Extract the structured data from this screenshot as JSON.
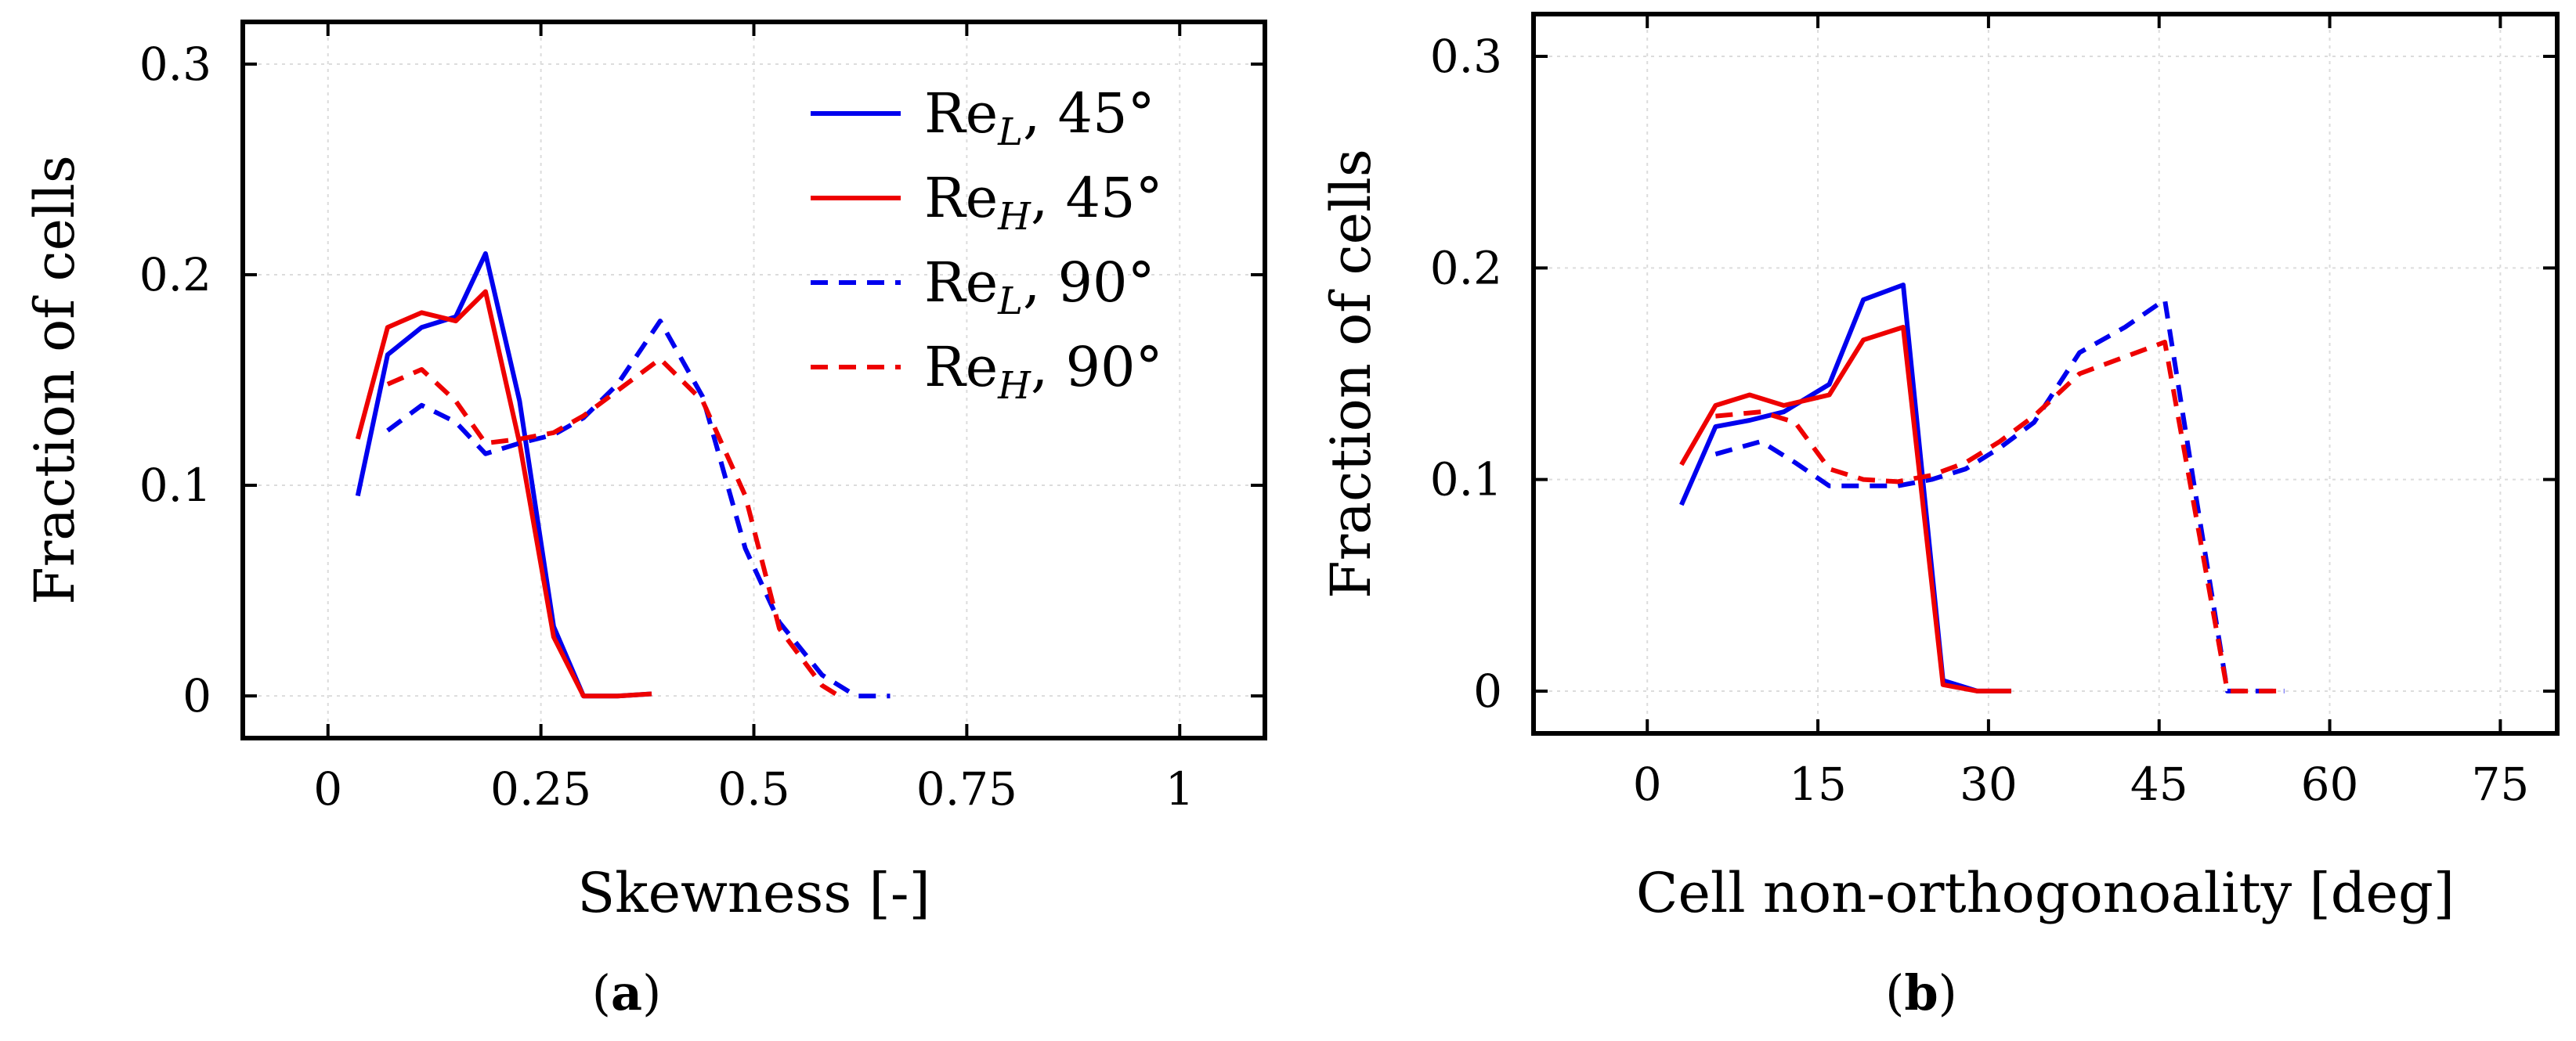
{
  "chart_data": [
    {
      "type": "line",
      "panel_label": "a",
      "xlabel": "Skewness [-]",
      "ylabel": "Fraction of cells",
      "xlim": [
        -0.1,
        1.1
      ],
      "ylim": [
        -0.02,
        0.32
      ],
      "xticks": [
        0,
        0.25,
        0.5,
        0.75,
        1
      ],
      "xtick_labels": [
        "0",
        "0.25",
        "0.5",
        "0.75",
        "1"
      ],
      "yticks": [
        0,
        0.1,
        0.2,
        0.3
      ],
      "ytick_labels": [
        "0",
        "0.1",
        "0.2",
        "0.3"
      ],
      "grid": true,
      "legend_position": "top-right",
      "series": [
        {
          "name": "Re_L, 45°",
          "legend_base": "Re",
          "legend_sub": "L",
          "legend_rest": ", 45°",
          "color": "#0000ee",
          "style": "solid",
          "x": [
            0.035,
            0.07,
            0.11,
            0.15,
            0.185,
            0.225,
            0.265,
            0.3,
            0.34,
            0.38
          ],
          "y": [
            0.095,
            0.162,
            0.175,
            0.18,
            0.21,
            0.14,
            0.033,
            0.0,
            0.0,
            0.001
          ]
        },
        {
          "name": "Re_H, 45°",
          "legend_base": "Re",
          "legend_sub": "H",
          "legend_rest": ", 45°",
          "color": "#ee0000",
          "style": "solid",
          "x": [
            0.035,
            0.07,
            0.11,
            0.15,
            0.185,
            0.225,
            0.265,
            0.3,
            0.34,
            0.38
          ],
          "y": [
            0.122,
            0.175,
            0.182,
            0.178,
            0.192,
            0.12,
            0.028,
            0.0,
            0.0,
            0.001
          ]
        },
        {
          "name": "Re_L, 90°",
          "legend_base": "Re",
          "legend_sub": "L",
          "legend_rest": ", 90°",
          "color": "#0000ee",
          "style": "dashed",
          "x": [
            0.07,
            0.11,
            0.15,
            0.185,
            0.225,
            0.265,
            0.3,
            0.34,
            0.39,
            0.44,
            0.49,
            0.53,
            0.58,
            0.62,
            0.66
          ],
          "y": [
            0.126,
            0.138,
            0.13,
            0.115,
            0.12,
            0.124,
            0.132,
            0.148,
            0.178,
            0.142,
            0.07,
            0.035,
            0.01,
            0.0,
            0.0
          ]
        },
        {
          "name": "Re_H, 90°",
          "legend_base": "Re",
          "legend_sub": "H",
          "legend_rest": ", 90°",
          "color": "#ee0000",
          "style": "dashed",
          "x": [
            0.07,
            0.11,
            0.15,
            0.185,
            0.225,
            0.265,
            0.3,
            0.34,
            0.39,
            0.44,
            0.49,
            0.53,
            0.58,
            0.6
          ],
          "y": [
            0.148,
            0.155,
            0.14,
            0.12,
            0.122,
            0.125,
            0.133,
            0.145,
            0.16,
            0.14,
            0.095,
            0.032,
            0.005,
            0.0
          ]
        }
      ]
    },
    {
      "type": "line",
      "panel_label": "b",
      "xlabel": "Cell non-orthogonoality [deg]",
      "ylabel": "Fraction of cells",
      "xlim": [
        -10,
        80
      ],
      "ylim": [
        -0.02,
        0.32
      ],
      "xticks": [
        0,
        15,
        30,
        45,
        60,
        75
      ],
      "xtick_labels": [
        "0",
        "15",
        "30",
        "45",
        "60",
        "75"
      ],
      "yticks": [
        0,
        0.1,
        0.2,
        0.3
      ],
      "ytick_labels": [
        "0",
        "0.1",
        "0.2",
        "0.3"
      ],
      "grid": true,
      "legend_position": "none",
      "series": [
        {
          "name": "Re_L, 45°",
          "color": "#0000ee",
          "style": "solid",
          "x": [
            3,
            6,
            9,
            12,
            16,
            19,
            22.5,
            26,
            29,
            32
          ],
          "y": [
            0.088,
            0.125,
            0.128,
            0.132,
            0.145,
            0.185,
            0.192,
            0.005,
            0.0,
            0.0
          ]
        },
        {
          "name": "Re_H, 45°",
          "color": "#ee0000",
          "style": "solid",
          "x": [
            3,
            6,
            9,
            12,
            16,
            19,
            22.5,
            26,
            29,
            32
          ],
          "y": [
            0.107,
            0.135,
            0.14,
            0.135,
            0.14,
            0.166,
            0.172,
            0.003,
            0.0,
            0.0
          ]
        },
        {
          "name": "Re_L, 90°",
          "color": "#0000ee",
          "style": "dashed",
          "x": [
            6,
            10,
            13,
            16,
            19,
            22,
            25,
            28,
            31,
            34,
            38,
            42,
            45.5,
            48,
            51,
            54,
            56
          ],
          "y": [
            0.112,
            0.118,
            0.108,
            0.097,
            0.097,
            0.097,
            0.1,
            0.105,
            0.115,
            0.127,
            0.16,
            0.172,
            0.185,
            0.1,
            0.0,
            0.0,
            0.0
          ]
        },
        {
          "name": "Re_H, 90°",
          "color": "#ee0000",
          "style": "dashed",
          "x": [
            6,
            10,
            13,
            16,
            19,
            22,
            25,
            28,
            31,
            34,
            38,
            42,
            45.5,
            48,
            51,
            54,
            56
          ],
          "y": [
            0.13,
            0.132,
            0.127,
            0.105,
            0.1,
            0.099,
            0.102,
            0.108,
            0.118,
            0.13,
            0.15,
            0.158,
            0.165,
            0.09,
            0.0,
            0.0,
            0.0
          ]
        }
      ]
    }
  ]
}
